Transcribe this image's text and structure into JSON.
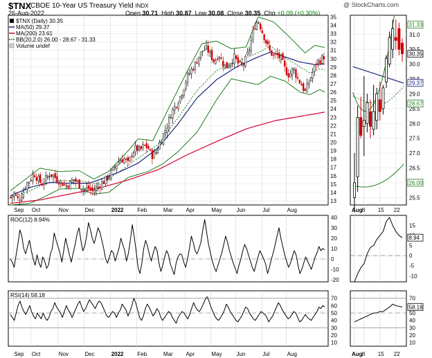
{
  "header": {
    "symbol": "$TNX",
    "full_name": "CBOE 10-Year US Treasury Yield",
    "exchange": "INDX",
    "date": "26-Aug-2022",
    "watermark": "@ StockCharts.com",
    "open_label": "Open",
    "open": "30.71",
    "high_label": "High",
    "high": "30.87",
    "low_label": "Low",
    "low": "30.08",
    "close_label": "Close",
    "close": "30.35",
    "chg_label": "Chg",
    "chg": "+0.09 (+0.30%)"
  },
  "colors": {
    "candle_up": "#000000",
    "candle_down": "#cc0000",
    "ma50": "#1a237e",
    "ma200": "#d50032",
    "bb": "#1e7d1e",
    "roc": "#000000",
    "rsi": "#000000",
    "tag_bg": "#ffffff"
  },
  "chart_data": [
    {
      "type": "candlestick",
      "title": "$TNX (Daily) 30.35",
      "legend": [
        {
          "label": "$TNX (Daily) 30.35",
          "color": "#000000"
        },
        {
          "label": "MA(50) 29.37",
          "color": "#1a237e"
        },
        {
          "label": "MA(200) 23.61",
          "color": "#d50032"
        },
        {
          "label": "BB(20,2.0) 26.00 - 28.67 - 31.33",
          "color": "#1e7d1e"
        },
        {
          "label": "Volume undef",
          "color": "#555555"
        }
      ],
      "x_ticks": [
        "Sep",
        "Oct",
        "Nov",
        "Dec",
        "2022",
        "Feb",
        "Mar",
        "Apr",
        "May",
        "Jun",
        "Jul",
        "Aug"
      ],
      "y_ticks": [
        "13",
        "14",
        "15",
        "16",
        "17",
        "18",
        "19",
        "20",
        "21",
        "22",
        "23",
        "24",
        "25",
        "26",
        "27",
        "28",
        "29",
        "30",
        "31",
        "32",
        "33",
        "34",
        "35"
      ],
      "ylim": [
        12.5,
        35.2
      ],
      "close_path": [
        [
          0,
          13.4
        ],
        [
          0.4,
          13.9
        ],
        [
          0.8,
          13.1
        ],
        [
          1.2,
          13.8
        ],
        [
          1.6,
          15.0
        ],
        [
          2.0,
          15.5
        ],
        [
          2.4,
          16.3
        ],
        [
          2.8,
          15.6
        ],
        [
          3.2,
          15.0
        ],
        [
          3.6,
          15.6
        ],
        [
          4.0,
          16.2
        ],
        [
          4.4,
          16.0
        ],
        [
          4.8,
          15.5
        ],
        [
          5.2,
          15.2
        ],
        [
          5.6,
          14.8
        ],
        [
          6.0,
          15.0
        ],
        [
          6.4,
          15.6
        ],
        [
          6.8,
          15.2
        ],
        [
          7.2,
          14.6
        ],
        [
          7.6,
          14.4
        ],
        [
          8.0,
          14.5
        ],
        [
          8.4,
          14.1
        ],
        [
          8.8,
          14.6
        ],
        [
          9.2,
          15.0
        ],
        [
          9.6,
          15.4
        ],
        [
          10.0,
          15.9
        ],
        [
          10.4,
          16.6
        ],
        [
          10.8,
          17.4
        ],
        [
          11.2,
          17.9
        ],
        [
          11.6,
          18.0
        ],
        [
          12.0,
          17.4
        ],
        [
          12.4,
          18.8
        ],
        [
          12.8,
          19.3
        ],
        [
          13.2,
          19.0
        ],
        [
          13.6,
          19.6
        ],
        [
          14.0,
          19.4
        ],
        [
          14.4,
          18.4
        ],
        [
          14.8,
          18.7
        ],
        [
          15.2,
          19.9
        ],
        [
          15.6,
          21.0
        ],
        [
          16.0,
          22.1
        ],
        [
          16.4,
          23.6
        ],
        [
          16.8,
          24.4
        ],
        [
          17.2,
          25.2
        ],
        [
          17.6,
          26.4
        ],
        [
          18.0,
          27.8
        ],
        [
          18.4,
          28.6
        ],
        [
          18.8,
          29.3
        ],
        [
          19.2,
          30.3
        ],
        [
          19.6,
          31.0
        ],
        [
          20.0,
          31.2
        ],
        [
          20.4,
          30.4
        ],
        [
          20.8,
          29.6
        ],
        [
          21.2,
          30.6
        ],
        [
          21.6,
          29.5
        ],
        [
          22.0,
          29.0
        ],
        [
          22.4,
          29.6
        ],
        [
          22.8,
          30.2
        ],
        [
          23.2,
          29.4
        ],
        [
          23.6,
          29.1
        ],
        [
          24.0,
          30.0
        ],
        [
          24.4,
          31.5
        ],
        [
          24.8,
          33.7
        ],
        [
          25.2,
          34.7
        ],
        [
          25.6,
          33.4
        ],
        [
          26.0,
          32.1
        ],
        [
          26.4,
          30.9
        ],
        [
          26.8,
          30.3
        ],
        [
          27.2,
          30.4
        ],
        [
          27.6,
          29.9
        ],
        [
          28.0,
          28.6
        ],
        [
          28.4,
          28.0
        ],
        [
          28.8,
          28.9
        ],
        [
          29.2,
          27.7
        ],
        [
          29.6,
          27.0
        ],
        [
          30.0,
          26.0
        ],
        [
          30.4,
          27.2
        ],
        [
          30.8,
          28.4
        ],
        [
          31.2,
          29.6
        ],
        [
          31.6,
          29.9
        ],
        [
          32.0,
          30.35
        ]
      ],
      "ma50_path": [
        [
          0,
          13.6
        ],
        [
          2,
          14.6
        ],
        [
          4,
          15.2
        ],
        [
          6,
          15.1
        ],
        [
          8,
          15.1
        ],
        [
          9,
          15.5
        ],
        [
          11,
          16.4
        ],
        [
          13,
          17.5
        ],
        [
          15,
          19.3
        ],
        [
          17,
          22.1
        ],
        [
          19,
          25.3
        ],
        [
          21,
          27.5
        ],
        [
          23,
          29.0
        ],
        [
          25,
          30.1
        ],
        [
          26.5,
          30.8
        ],
        [
          28,
          30.2
        ],
        [
          29.5,
          29.6
        ],
        [
          31,
          29.3
        ],
        [
          32,
          29.37
        ]
      ],
      "ma200_path": [
        [
          0,
          12.7
        ],
        [
          3,
          13.1
        ],
        [
          6,
          13.8
        ],
        [
          9,
          14.5
        ],
        [
          12,
          15.5
        ],
        [
          15,
          16.7
        ],
        [
          18,
          18.5
        ],
        [
          21,
          20.1
        ],
        [
          24,
          21.6
        ],
        [
          27,
          22.6
        ],
        [
          30,
          23.2
        ],
        [
          32,
          23.61
        ]
      ],
      "bb_upper_path": [
        [
          0,
          14.2
        ],
        [
          2,
          16.0
        ],
        [
          3,
          16.9
        ],
        [
          5,
          16.5
        ],
        [
          7,
          16.6
        ],
        [
          8.5,
          15.6
        ],
        [
          10,
          16.5
        ],
        [
          12,
          19.0
        ],
        [
          13,
          20.4
        ],
        [
          14.5,
          20.2
        ],
        [
          16,
          23.8
        ],
        [
          18,
          28.5
        ],
        [
          19.5,
          31.8
        ],
        [
          21,
          32.1
        ],
        [
          22.5,
          31.2
        ],
        [
          24,
          31.4
        ],
        [
          25.2,
          35.0
        ],
        [
          26.8,
          34.4
        ],
        [
          28.5,
          32.5
        ],
        [
          30,
          30.7
        ],
        [
          31,
          31.6
        ],
        [
          32,
          31.33
        ]
      ],
      "bb_middle_path": [
        [
          0,
          13.4
        ],
        [
          2,
          14.2
        ],
        [
          3.5,
          15.0
        ],
        [
          5,
          15.4
        ],
        [
          7,
          15.4
        ],
        [
          9,
          15.0
        ],
        [
          11,
          16.4
        ],
        [
          13,
          18.1
        ],
        [
          15,
          19.7
        ],
        [
          17,
          22.8
        ],
        [
          19,
          26.2
        ],
        [
          21,
          28.6
        ],
        [
          23,
          29.6
        ],
        [
          25,
          30.6
        ],
        [
          26.5,
          31.5
        ],
        [
          28,
          30.1
        ],
        [
          29.5,
          29.0
        ],
        [
          30.5,
          28.3
        ],
        [
          31.5,
          28.8
        ],
        [
          32,
          28.67
        ]
      ],
      "bb_lower_path": [
        [
          0,
          12.5
        ],
        [
          2,
          12.7
        ],
        [
          3.5,
          13.5
        ],
        [
          5,
          14.4
        ],
        [
          7,
          14.5
        ],
        [
          8.5,
          13.8
        ],
        [
          10,
          14.0
        ],
        [
          12,
          15.8
        ],
        [
          14,
          16.5
        ],
        [
          15.5,
          17.4
        ],
        [
          17,
          18.8
        ],
        [
          19,
          21.2
        ],
        [
          21,
          25.1
        ],
        [
          22.5,
          27.6
        ],
        [
          24,
          27.2
        ],
        [
          25.2,
          26.9
        ],
        [
          26.5,
          27.9
        ],
        [
          28,
          27.3
        ],
        [
          29.5,
          26.0
        ],
        [
          30.5,
          25.7
        ],
        [
          31.5,
          26.3
        ],
        [
          32,
          26.0
        ]
      ],
      "zoom_candles": [
        {
          "o": 25.5,
          "h": 27.0,
          "l": 25.0,
          "c": 26.0
        },
        {
          "o": 26.2,
          "h": 28.6,
          "l": 25.7,
          "c": 28.2
        },
        {
          "o": 28.2,
          "h": 28.9,
          "l": 27.5,
          "c": 27.6
        },
        {
          "o": 27.9,
          "h": 29.6,
          "l": 26.9,
          "c": 28.1
        },
        {
          "o": 28.0,
          "h": 29.0,
          "l": 27.7,
          "c": 28.7
        },
        {
          "o": 28.4,
          "h": 28.8,
          "l": 27.5,
          "c": 27.9
        },
        {
          "o": 27.8,
          "h": 29.3,
          "l": 27.6,
          "c": 28.4
        },
        {
          "o": 28.1,
          "h": 29.2,
          "l": 27.8,
          "c": 29.0
        },
        {
          "o": 28.8,
          "h": 29.4,
          "l": 28.1,
          "c": 28.4
        },
        {
          "o": 28.5,
          "h": 29.3,
          "l": 28.3,
          "c": 29.2
        },
        {
          "o": 29.4,
          "h": 30.3,
          "l": 29.2,
          "c": 30.2
        },
        {
          "o": 30.0,
          "h": 31.1,
          "l": 29.9,
          "c": 30.9
        },
        {
          "o": 30.5,
          "h": 31.5,
          "l": 30.2,
          "c": 31.2
        },
        {
          "o": 30.9,
          "h": 31.5,
          "l": 30.5,
          "c": 30.8
        },
        {
          "o": 31.2,
          "h": 31.4,
          "l": 30.3,
          "c": 30.5
        },
        {
          "o": 30.71,
          "h": 30.87,
          "l": 30.08,
          "c": 30.35
        }
      ],
      "zoom_x_ticks": [
        "Aug",
        "8",
        "15",
        "22"
      ],
      "zoom_y_ticks": [
        "25.5",
        "26.0",
        "26.5",
        "27.0",
        "27.5",
        "28.0",
        "28.5",
        "29.0",
        "29.5",
        "30.0",
        "30.5",
        "31.0"
      ],
      "zoom_tags": [
        {
          "value": "31.33",
          "color": "#1e7d1e"
        },
        {
          "value": "30.35",
          "color": "#000000"
        },
        {
          "value": "29.37",
          "color": "#1a237e"
        },
        {
          "value": "28.67",
          "color": "#1e7d1e"
        },
        {
          "value": "26.00",
          "color": "#1e7d1e"
        }
      ]
    },
    {
      "type": "line",
      "title": "ROC(12) 8.94%",
      "y_ticks": [
        "40",
        "30",
        "20",
        "10",
        "0",
        "-10",
        "-20"
      ],
      "ylim": [
        -22,
        42
      ],
      "zoom_y_ticks": [
        "15",
        "10",
        "5",
        "0",
        "-5",
        "-10"
      ],
      "zoom_ylim": [
        -13,
        20
      ],
      "tag": "8.94",
      "values": [
        0,
        -3,
        -8,
        4,
        15,
        28,
        22,
        10,
        5,
        12,
        18,
        8,
        0,
        -6,
        4,
        -4,
        -8,
        2,
        -2,
        -9,
        -6,
        5,
        10,
        25,
        18,
        12,
        6,
        -3,
        8,
        20,
        12,
        4,
        -3,
        6,
        14,
        24,
        30,
        18,
        8,
        12,
        22,
        35,
        28,
        20,
        15,
        22,
        30,
        26,
        18,
        10,
        0,
        -4,
        2,
        8,
        6,
        -2,
        4,
        10,
        20,
        14,
        8,
        -2,
        6,
        18,
        33,
        22,
        8,
        -8,
        -14,
        -4,
        10,
        18,
        12,
        4,
        -2,
        6,
        12,
        8,
        -4,
        -12,
        -6,
        2,
        8,
        4,
        -5,
        -10,
        -15,
        -4,
        2,
        5,
        4,
        -3,
        -8,
        0,
        10,
        22,
        16,
        8,
        5,
        10,
        16,
        28,
        38,
        26,
        14,
        6,
        -2,
        -8,
        -12,
        -6,
        0,
        6,
        14,
        22,
        16,
        8,
        2,
        -4,
        -9,
        -14,
        -6,
        0,
        8,
        14,
        10,
        4,
        -2,
        -8,
        -12,
        -5,
        2,
        8,
        4,
        0,
        -5,
        -14,
        -8,
        0,
        6,
        14,
        22,
        30,
        20,
        12,
        4,
        -2,
        -8,
        -4,
        2,
        8,
        4,
        -6,
        -14,
        -10,
        -4,
        2,
        -2,
        -6,
        -10,
        -4,
        2,
        6,
        12,
        8,
        10,
        8.94
      ],
      "zoom_values": [
        -13,
        -9,
        -6,
        -4,
        1,
        4,
        5,
        8,
        10,
        12,
        17,
        19,
        15,
        12,
        10,
        8.94
      ]
    },
    {
      "type": "line",
      "title": "RSI(14) 58.18",
      "y_ticks": [
        "70",
        "60",
        "50",
        "40",
        "30",
        "20",
        "10"
      ],
      "ylim": [
        5,
        80
      ],
      "zoom_y_ticks": [
        "70",
        "60",
        "50",
        "40",
        "30",
        "20",
        "10"
      ],
      "tag": "58.18",
      "values": [
        48,
        44,
        40,
        50,
        60,
        66,
        58,
        52,
        48,
        54,
        60,
        52,
        46,
        42,
        50,
        46,
        42,
        50,
        44,
        40,
        44,
        52,
        56,
        64,
        58,
        54,
        50,
        44,
        52,
        60,
        54,
        50,
        44,
        50,
        56,
        62,
        66,
        58,
        52,
        56,
        62,
        68,
        64,
        60,
        56,
        62,
        66,
        64,
        58,
        52,
        46,
        44,
        48,
        52,
        50,
        44,
        50,
        54,
        62,
        58,
        54,
        46,
        52,
        60,
        70,
        64,
        54,
        44,
        40,
        46,
        56,
        62,
        58,
        52,
        46,
        50,
        56,
        52,
        44,
        40,
        44,
        48,
        52,
        50,
        44,
        40,
        36,
        44,
        48,
        52,
        50,
        46,
        42,
        48,
        56,
        64,
        58,
        54,
        52,
        56,
        62,
        68,
        72,
        66,
        58,
        52,
        46,
        42,
        40,
        44,
        48,
        54,
        62,
        58,
        52,
        48,
        44,
        40,
        38,
        42,
        46,
        52,
        58,
        56,
        50,
        46,
        42,
        40,
        44,
        48,
        52,
        50,
        48,
        44,
        38,
        42,
        46,
        52,
        58,
        64,
        60,
        54,
        50,
        46,
        42,
        44,
        48,
        52,
        50,
        44,
        38,
        40,
        44,
        48,
        44,
        42,
        40,
        44,
        48,
        52,
        58,
        56,
        60,
        58.18
      ],
      "zoom_values": [
        38,
        40,
        42,
        44,
        46,
        48,
        50,
        50,
        52,
        52,
        55,
        58,
        62,
        60,
        59,
        58.18
      ]
    }
  ]
}
